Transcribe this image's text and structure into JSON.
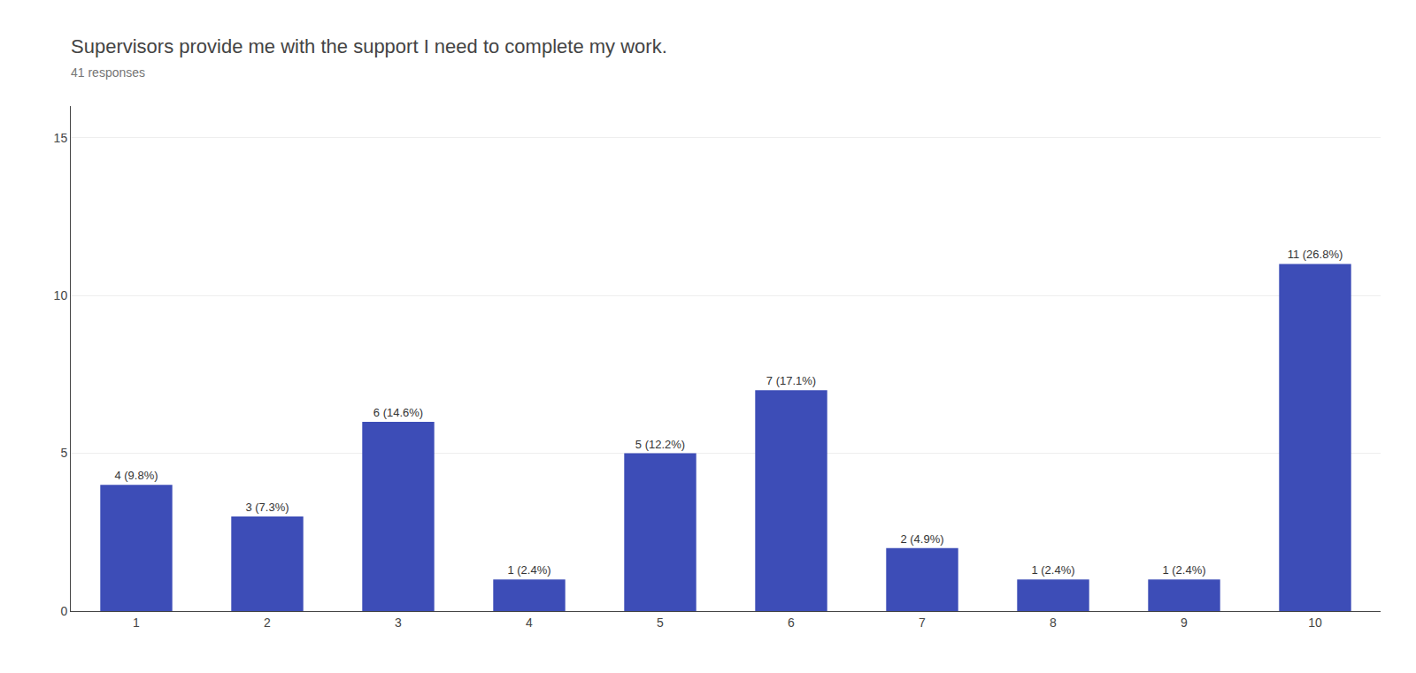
{
  "chart_data": {
    "type": "bar",
    "title": "Supervisors provide me with the support I need to complete my work.",
    "subtitle": "41 responses",
    "categories": [
      1,
      2,
      3,
      4,
      5,
      6,
      7,
      8,
      9,
      10
    ],
    "values": [
      4,
      3,
      6,
      1,
      5,
      7,
      2,
      1,
      1,
      11
    ],
    "value_labels": [
      "4 (9.8%)",
      "3 (7.3%)",
      "6 (14.6%)",
      "1 (2.4%)",
      "5 (12.2%)",
      "7 (17.1%)",
      "2 (4.9%)",
      "1 (2.4%)",
      "1 (2.4%)",
      "11 (26.8%)"
    ],
    "data_labels": true,
    "color": "#3d4db7",
    "ylim": [
      0,
      16
    ],
    "yticks": [
      0,
      5,
      10,
      15
    ],
    "grid": true
  }
}
